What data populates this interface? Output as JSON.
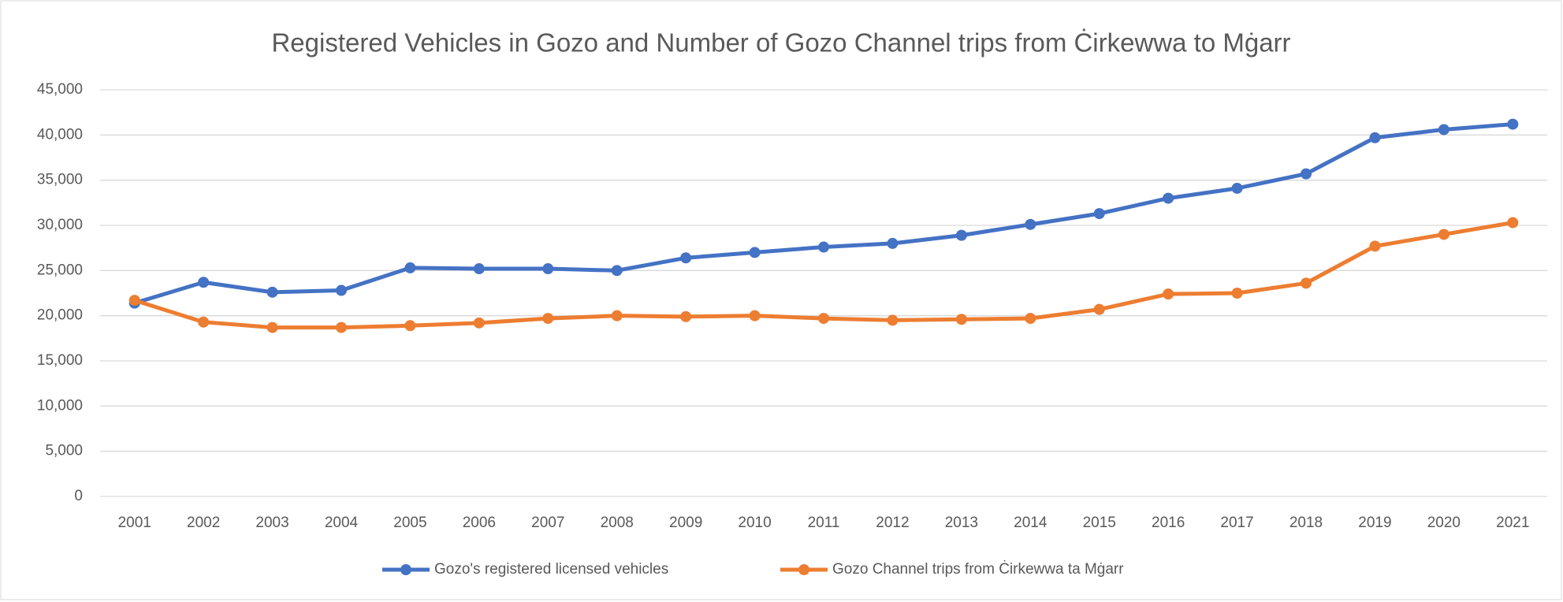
{
  "chart_data": {
    "type": "line",
    "title": "Registered Vehicles in Gozo and Number of Gozo Channel trips from Ċirkewwa to Mġarr",
    "categories": [
      "2001",
      "2002",
      "2003",
      "2004",
      "2005",
      "2006",
      "2007",
      "2008",
      "2009",
      "2010",
      "2011",
      "2012",
      "2013",
      "2014",
      "2015",
      "2016",
      "2017",
      "2018",
      "2019",
      "2020",
      "2021"
    ],
    "series": [
      {
        "name": "Gozo's registered licensed vehicles",
        "color": "#4472c4",
        "values": [
          21400,
          23700,
          22600,
          22800,
          25300,
          25200,
          25200,
          25000,
          26400,
          27000,
          27600,
          28000,
          28900,
          30100,
          31300,
          33000,
          34100,
          35700,
          39700,
          40600,
          41200
        ]
      },
      {
        "name": "Gozo Channel trips from Ċirkewwa ta Mġarr",
        "color": "#ed7d31",
        "values": [
          21700,
          19300,
          18700,
          18700,
          18900,
          19200,
          19700,
          20000,
          19900,
          20000,
          19700,
          19500,
          19600,
          19700,
          20700,
          22400,
          22500,
          23600,
          27700,
          29000,
          30300
        ]
      }
    ],
    "ylim": [
      0,
      45000
    ],
    "yticks": [
      0,
      {
        "value": 5000,
        "label": "5,000"
      },
      {
        "value": 10000,
        "label": "10,000"
      },
      {
        "value": 15000,
        "label": "15,000"
      },
      {
        "value": 20000,
        "label": "20,000"
      },
      {
        "value": 25000,
        "label": "25,000"
      },
      {
        "value": 30000,
        "label": "30,000"
      },
      {
        "value": 35000,
        "label": "35,000"
      },
      {
        "value": 40000,
        "label": "40,000"
      },
      {
        "value": 45000,
        "label": "45,000"
      }
    ],
    "grid": true,
    "legend": "bottom"
  }
}
